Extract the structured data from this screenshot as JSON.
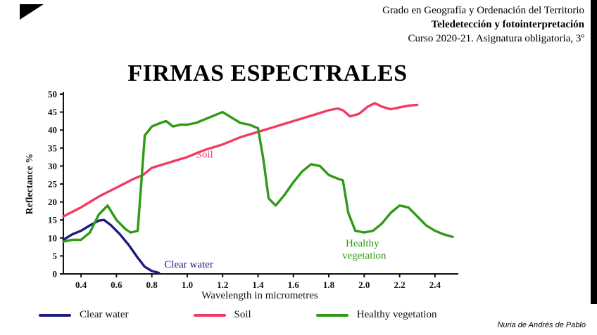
{
  "header": {
    "line1": "Grado en Geografía y Ordenación del Territorio",
    "line2": "Teledetección y fotointerpretación",
    "line3": "Curso 2020-21. Asignatura obligatoria, 3º"
  },
  "title": "FIRMAS ESPECTRALES",
  "chart_data": {
    "type": "line",
    "title": "",
    "xlabel": "Wavelength in micrometres",
    "ylabel": "Reflectance %",
    "xlim": [
      0.3,
      2.52
    ],
    "ylim": [
      0,
      50
    ],
    "xticks": [
      0.4,
      0.6,
      0.8,
      1.0,
      1.2,
      1.4,
      1.6,
      1.8,
      2.0,
      2.2,
      2.4
    ],
    "yticks": [
      0,
      5,
      10,
      15,
      20,
      25,
      30,
      35,
      40,
      45,
      50
    ],
    "grid": false,
    "legend_position": "bottom",
    "series": [
      {
        "name": "Clear water",
        "color": "#1c1c80",
        "x": [
          0.3,
          0.35,
          0.4,
          0.45,
          0.5,
          0.53,
          0.57,
          0.62,
          0.67,
          0.72,
          0.76,
          0.8,
          0.84
        ],
        "y": [
          9.5,
          11.0,
          12.0,
          13.5,
          14.8,
          15.0,
          13.5,
          11.0,
          8.0,
          4.5,
          2.0,
          0.8,
          0.3
        ]
      },
      {
        "name": "Soil",
        "color": "#f23b64",
        "x": [
          0.3,
          0.4,
          0.5,
          0.6,
          0.7,
          0.75,
          0.8,
          0.9,
          1.0,
          1.1,
          1.2,
          1.3,
          1.4,
          1.5,
          1.6,
          1.7,
          1.8,
          1.85,
          1.88,
          1.92,
          1.97,
          2.02,
          2.06,
          2.1,
          2.15,
          2.2,
          2.25,
          2.3
        ],
        "y": [
          16.0,
          18.5,
          21.5,
          24.0,
          26.5,
          27.5,
          29.5,
          31.0,
          32.5,
          34.5,
          36.0,
          38.0,
          39.5,
          41.0,
          42.5,
          44.0,
          45.5,
          46.0,
          45.5,
          43.8,
          44.5,
          46.5,
          47.5,
          46.5,
          45.8,
          46.3,
          46.8,
          47.0
        ]
      },
      {
        "name": "Healthy vegetation",
        "color": "#2f9a16",
        "x": [
          0.3,
          0.35,
          0.4,
          0.45,
          0.5,
          0.55,
          0.6,
          0.65,
          0.68,
          0.72,
          0.74,
          0.76,
          0.8,
          0.85,
          0.88,
          0.92,
          0.96,
          1.0,
          1.05,
          1.1,
          1.15,
          1.2,
          1.25,
          1.3,
          1.35,
          1.4,
          1.43,
          1.46,
          1.5,
          1.55,
          1.6,
          1.65,
          1.7,
          1.75,
          1.8,
          1.85,
          1.88,
          1.91,
          1.95,
          2.0,
          2.05,
          2.1,
          2.15,
          2.2,
          2.25,
          2.3,
          2.35,
          2.4,
          2.45,
          2.5
        ],
        "y": [
          9.0,
          9.5,
          9.5,
          11.5,
          16.5,
          19.0,
          15.0,
          12.5,
          11.5,
          12.0,
          25.0,
          38.5,
          41.0,
          42.0,
          42.5,
          41.0,
          41.5,
          41.5,
          42.0,
          43.0,
          44.0,
          45.0,
          43.5,
          42.0,
          41.5,
          40.5,
          32.0,
          21.0,
          19.0,
          22.0,
          25.5,
          28.5,
          30.5,
          30.0,
          27.5,
          26.5,
          26.0,
          17.0,
          12.0,
          11.5,
          12.0,
          14.0,
          17.0,
          19.0,
          18.5,
          16.0,
          13.5,
          12.0,
          11.0,
          10.3
        ]
      }
    ],
    "annotations": [
      {
        "text": "Soil",
        "x": 1.05,
        "y": 32.3,
        "color": "#f23b64",
        "anchor": "start"
      },
      {
        "text": "Clear water",
        "x": 0.87,
        "y": 1.8,
        "color": "#1c1c80",
        "anchor": "start"
      },
      {
        "text": "Healthy",
        "x": 1.99,
        "y": 7.6,
        "color": "#2f9a16",
        "anchor": "middle"
      },
      {
        "text": "vegetation",
        "x": 2.0,
        "y": 4.2,
        "color": "#2f9a16",
        "anchor": "middle"
      }
    ]
  },
  "legend": {
    "items": [
      {
        "label": "Clear water",
        "color": "#1c1c80"
      },
      {
        "label": "Soil",
        "color": "#f23b64"
      },
      {
        "label": "Healthy vegetation",
        "color": "#2f9a16"
      }
    ]
  },
  "footer": {
    "credit": "Nuria de Andrés de Pablo"
  }
}
